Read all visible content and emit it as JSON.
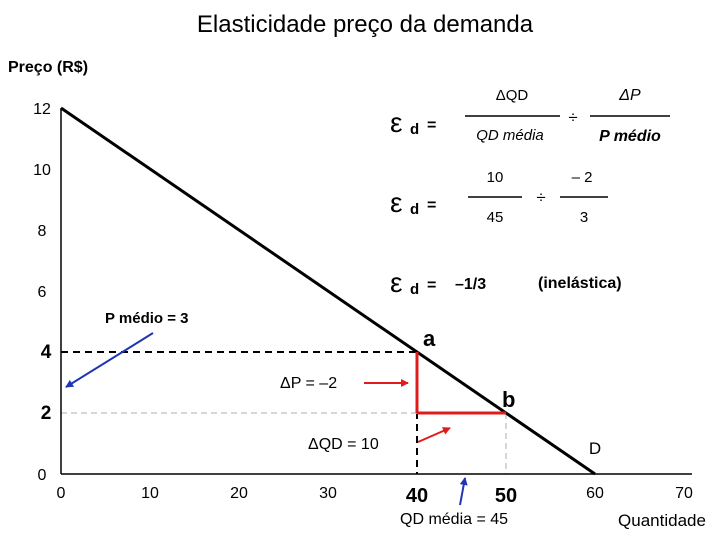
{
  "chart_data": {
    "type": "line",
    "title": "Elasticidade preço da demanda",
    "ylabel": "Preço (R$)",
    "xlabel": "Quantidade",
    "xlim": [
      0,
      70
    ],
    "ylim": [
      0,
      12
    ],
    "x_ticks": [
      0,
      10,
      20,
      30,
      40,
      50,
      60,
      70
    ],
    "y_ticks": [
      0,
      2,
      4,
      6,
      8,
      10,
      12
    ],
    "grid": false,
    "series": [
      {
        "name": "D",
        "x": [
          0,
          60
        ],
        "y": [
          12,
          0
        ]
      }
    ],
    "points": [
      {
        "label": "a",
        "x": 40,
        "y": 4
      },
      {
        "label": "b",
        "x": 50,
        "y": 2
      }
    ],
    "annotations": {
      "p_medio": "P médio = 3",
      "delta_p": "ΔP = –2",
      "delta_qd": "ΔQD = 10",
      "qd_media": "QD média = 45"
    },
    "formula": {
      "eps": "ε",
      "sub": "d",
      "eq": "=",
      "dqd": "ΔQD",
      "qd_media": "QD média",
      "div": "÷",
      "dp": "ΔP",
      "p_medio": "P médio",
      "num_q": "10",
      "den_q": "45",
      "num_p": "– 2",
      "den_p": "3",
      "result": "–1/3",
      "classification": "(inelástica)"
    },
    "colors": {
      "demand": "#000000",
      "change": "#e01b1b",
      "arrow": "#1f35b5",
      "guide": "#c8c8c8"
    }
  }
}
